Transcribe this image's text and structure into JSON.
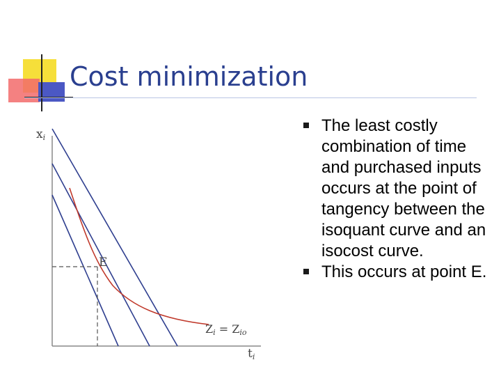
{
  "slide": {
    "title": "Cost minimization",
    "bullets": [
      "The least costly combination of time and purchased inputs occurs at the point of tangency between the isoquant curve and an isocost curve.",
      "This occurs at point E."
    ]
  },
  "diagram": {
    "y_axis_label": "x",
    "y_axis_sub": "i",
    "x_axis_label": "t",
    "x_axis_sub": "i",
    "point_label": "E",
    "isoquant_label_main": "Z",
    "isoquant_label_sub1": "i",
    "isoquant_label_eq": " = Z",
    "isoquant_label_sub2": "io",
    "colors": {
      "isocost_lines": "#2f3f8f",
      "isoquant_curve": "#c0392b",
      "axes": "#888888",
      "dashed": "#555555"
    }
  }
}
